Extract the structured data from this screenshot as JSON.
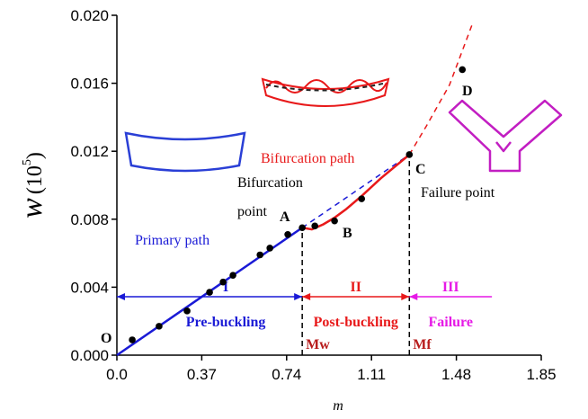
{
  "chart_data": {
    "type": "line",
    "x_label": "m",
    "y_label": [
      "w",
      "(10",
      "5",
      ")"
    ],
    "xlim": [
      0,
      1.85
    ],
    "ylim": [
      0,
      0.02
    ],
    "xticks": [
      {
        "value": 0,
        "label": "0.0"
      },
      0.37,
      0.74,
      1.11,
      1.48,
      1.85
    ],
    "yticks": [
      {
        "value": 0,
        "label": "0.000"
      },
      0.004,
      0.008,
      0.012,
      0.016,
      {
        "value": 0.02,
        "label": "0.020"
      }
    ],
    "series": [
      {
        "name": "Primary path",
        "color": "#1a1ad6",
        "dashed": false,
        "x": [
          0,
          0.808
        ],
        "values": [
          0,
          0.0075
        ]
      },
      {
        "color": "#1a1ad6",
        "dashed": true,
        "x": [
          0.808,
          1.275
        ],
        "values": [
          0.0075,
          0.0118
        ]
      },
      {
        "name": "Bifurcation path",
        "color": "#e8191a",
        "dashed": false,
        "x": [
          0.808,
          0.85,
          0.9,
          0.95,
          1.0,
          1.07,
          1.15,
          1.275
        ],
        "values": [
          0.0075,
          0.0074,
          0.0077,
          0.0081,
          0.0086,
          0.0094,
          0.0104,
          0.0118
        ]
      },
      {
        "color": "#e8191a",
        "dashed": true,
        "x": [
          1.275,
          1.35,
          1.45,
          1.55
        ],
        "values": [
          0.0118,
          0.0135,
          0.0159,
          0.0195
        ]
      }
    ],
    "points": {
      "color": "#000000",
      "x": [
        0.067,
        0.184,
        0.306,
        0.404,
        0.463,
        0.506,
        0.624,
        0.667,
        0.745,
        0.808,
        0.863,
        0.949,
        1.067,
        1.275,
        1.506
      ],
      "values": [
        0.0009,
        0.0017,
        0.0026,
        0.0037,
        0.0043,
        0.0047,
        0.0059,
        0.0063,
        0.0071,
        0.0075,
        0.0076,
        0.0079,
        0.0092,
        0.0118,
        0.0168
      ]
    },
    "markers": [
      {
        "label": "Mw",
        "x": 0.808,
        "y": 0.0075
      },
      {
        "label": "Mf",
        "x": 1.275,
        "y": 0.0118
      }
    ],
    "regions": [
      {
        "numeral": "I",
        "label": "Pre-buckling",
        "color": "#1a1ad6",
        "range": [
          0,
          0.808
        ]
      },
      {
        "numeral": "II",
        "label": "Post-buckling",
        "color": "#e8191a",
        "range": [
          0.808,
          1.275
        ]
      },
      {
        "numeral": "III",
        "label": "Failure",
        "color": "#e619e6",
        "range": [
          1.275,
          1.635
        ]
      }
    ],
    "point_labels": [
      "O",
      "A",
      "B",
      "C",
      "D"
    ],
    "annotations": {
      "bifurcation_point": [
        "Bifurcation",
        "point"
      ],
      "failure_point": "Failure point"
    }
  }
}
